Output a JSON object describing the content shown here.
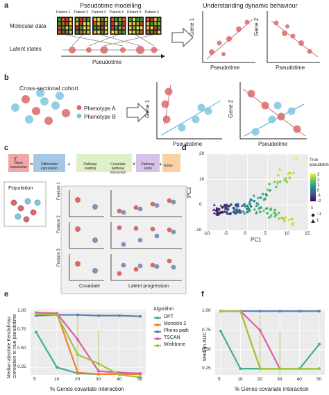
{
  "panels": {
    "a": {
      "label": "a",
      "title_left": "Pseudotime modelling",
      "title_right": "Understanding dynamic behaviour",
      "row_molecular": "Molecular data",
      "row_latent": "Latent states",
      "patients": [
        "Patient 1",
        "Patient 2",
        "Patient 3",
        "Patient 4",
        "Patient 5",
        "Patient 6"
      ],
      "axis_pseudotime": "Pseudotime",
      "gene1": "Gene 1",
      "gene2": "Gene 2"
    },
    "b": {
      "label": "b",
      "title": "Cross-sectional cohort",
      "phenotype_a": "Phenotype A",
      "phenotype_b": "Phenotype B",
      "axis_pseudotime": "Pseudotime",
      "gene1": "Gene 1",
      "gene2": "Gene 2"
    },
    "c": {
      "label": "c",
      "eq_y": "y",
      "eq_y_sub": "Gene expression",
      "eq_diff": "Differential expression",
      "eq_loading": "Pathway loading",
      "eq_covariate": "Covariate pathway interaction",
      "eq_score": "Pathway score",
      "eq_noise": "Noise",
      "population": "Population",
      "features": [
        "Feature 1",
        "Feature 2",
        "Feature 3"
      ],
      "covariate": "Covariate",
      "latent_progression": "Latent progression"
    },
    "d": {
      "label": "d",
      "xlabel": "PC1",
      "ylabel": "PC2",
      "legend_title": "True pseudotime",
      "color_ticks": [
        "3",
        "2",
        "1",
        "0",
        "-1",
        "-2"
      ],
      "x_legend_title": "x",
      "x_legend": [
        "−1",
        "1"
      ]
    },
    "e": {
      "label": "e",
      "ylabel": "Median absolute Kendall-tau correlation to true pseudotime",
      "xlabel": "% Genes covariate interaction",
      "legend_title": "Algorithm"
    },
    "f": {
      "label": "f",
      "ylabel": "Median AUC",
      "xlabel": "% Genes covariate interaction"
    }
  },
  "colors": {
    "red": "#d9686a",
    "blue": "#7fc6df",
    "dpt": "#3fb08f",
    "monocle": "#f07f33",
    "pheno": "#5a80b8",
    "tscan": "#e25aa6",
    "wishbone": "#9cc83a"
  },
  "chart_data": [
    {
      "type": "scatter",
      "xlabel": "PC1",
      "ylabel": "PC2",
      "xlim": [
        -10,
        15
      ],
      "ylim": [
        -10,
        20
      ],
      "xticks": [
        -10,
        -5,
        0,
        5,
        10,
        15
      ],
      "yticks": [
        -10,
        0,
        10,
        20
      ],
      "colorbar": [
        -2,
        3
      ]
    },
    {
      "type": "line",
      "x": [
        5,
        10,
        20,
        30,
        40,
        50
      ],
      "xticks": [
        "5",
        "10",
        "20",
        "30",
        "40",
        "50"
      ],
      "yticks": [
        "0.25",
        "0.50",
        "0.75",
        "1.00"
      ],
      "ylim": [
        0.15,
        1.02
      ],
      "series": [
        {
          "name": "DPT",
          "values": [
            0.72,
            0.25,
            0.17,
            0.16,
            0.16,
            0.16
          ]
        },
        {
          "name": "Monocle 2",
          "values": [
            0.98,
            0.97,
            0.18,
            0.16,
            0.16,
            0.16
          ]
        },
        {
          "name": "Pheno path",
          "values": [
            0.94,
            0.95,
            0.95,
            0.94,
            0.94,
            0.93
          ]
        },
        {
          "name": "TSCAN",
          "values": [
            0.98,
            0.97,
            0.62,
            0.2,
            0.18,
            0.17
          ]
        },
        {
          "name": "Wishbone",
          "values": [
            0.96,
            0.95,
            0.42,
            0.3,
            0.15,
            0.12
          ]
        }
      ]
    },
    {
      "type": "line",
      "x": [
        5,
        10,
        20,
        30,
        40,
        50
      ],
      "xticks": [
        "5",
        "10",
        "20",
        "30",
        "40",
        "50"
      ],
      "yticks": [
        "0.25",
        "0.50",
        "0.75",
        "1.00"
      ],
      "ylim": [
        0.17,
        1.02
      ],
      "series": [
        {
          "name": "DPT",
          "values": [
            0.74,
            0.25,
            0.25,
            0.25,
            0.25,
            0.57
          ]
        },
        {
          "name": "Monocle 2",
          "values": [
            1.0,
            1.0,
            0.25,
            0.25,
            0.25,
            0.25
          ]
        },
        {
          "name": "Pheno path",
          "values": [
            1.0,
            1.0,
            1.0,
            1.0,
            1.0,
            1.0
          ]
        },
        {
          "name": "TSCAN",
          "values": [
            1.0,
            1.0,
            0.75,
            0.25,
            0.25,
            0.25
          ]
        },
        {
          "name": "Wishbone",
          "values": [
            1.0,
            1.0,
            0.25,
            0.25,
            0.25,
            0.25
          ]
        }
      ]
    }
  ]
}
